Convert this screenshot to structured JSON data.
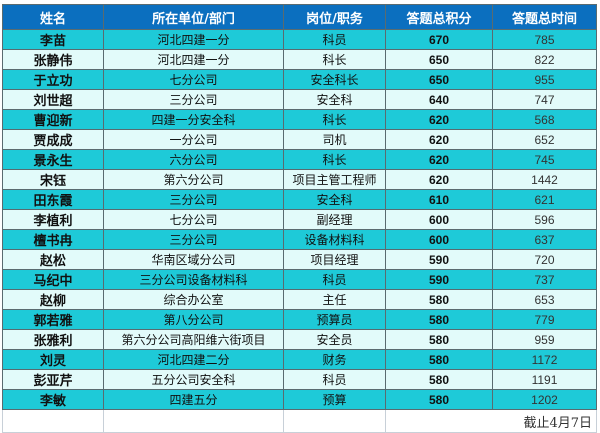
{
  "headers": [
    "姓名",
    "所在单位/部门",
    "岗位/职务",
    "答题总积分",
    "答题总时间"
  ],
  "rows": [
    {
      "name": "李苗",
      "unit": "河北四建一分",
      "position": "科员",
      "score": "670",
      "time": "785"
    },
    {
      "name": "张静伟",
      "unit": "河北四建一分",
      "position": "科长",
      "score": "650",
      "time": "822"
    },
    {
      "name": "于立功",
      "unit": "七分公司",
      "position": "安全科长",
      "score": "650",
      "time": "955"
    },
    {
      "name": "刘世超",
      "unit": "三分公司",
      "position": "安全科",
      "score": "640",
      "time": "747"
    },
    {
      "name": "曹迎新",
      "unit": "四建一分安全科",
      "position": "科长",
      "score": "620",
      "time": "568"
    },
    {
      "name": "贾成成",
      "unit": "一分公司",
      "position": "司机",
      "score": "620",
      "time": "652"
    },
    {
      "name": "景永生",
      "unit": "六分公司",
      "position": "科长",
      "score": "620",
      "time": "745"
    },
    {
      "name": "宋钰",
      "unit": "第六分公司",
      "position": "项目主管工程师",
      "score": "620",
      "time": "1442"
    },
    {
      "name": "田东霞",
      "unit": "三分公司",
      "position": "安全科",
      "score": "610",
      "time": "621"
    },
    {
      "name": "李植利",
      "unit": "七分公司",
      "position": "副经理",
      "score": "600",
      "time": "596"
    },
    {
      "name": "檀书冉",
      "unit": "三分公司",
      "position": "设备材料科",
      "score": "600",
      "time": "637"
    },
    {
      "name": "赵松",
      "unit": "华南区域分公司",
      "position": "项目经理",
      "score": "590",
      "time": "720"
    },
    {
      "name": "马纪中",
      "unit": "三分公司设备材料科",
      "position": "科员",
      "score": "590",
      "time": "737"
    },
    {
      "name": "赵柳",
      "unit": "综合办公室",
      "position": "主任",
      "score": "580",
      "time": "653"
    },
    {
      "name": "郭若雅",
      "unit": "第八分公司",
      "position": "预算员",
      "score": "580",
      "time": "779"
    },
    {
      "name": "张雅利",
      "unit": "第六分公司高阳维六街项目",
      "position": "安全员",
      "score": "580",
      "time": "959"
    },
    {
      "name": "刘灵",
      "unit": "河北四建二分",
      "position": "财务",
      "score": "580",
      "time": "1172"
    },
    {
      "name": "彭亚芹",
      "unit": "五分公司安全科",
      "position": "科员",
      "score": "580",
      "time": "1191"
    },
    {
      "name": "李敏",
      "unit": "四建五分",
      "position": "预算",
      "score": "580",
      "time": "1202"
    }
  ],
  "footer_note": "截止4月7日",
  "colors": {
    "header_bg": "#0b6fbf",
    "row_odd": "#1ecad8",
    "row_even": "#e2fbfa"
  }
}
